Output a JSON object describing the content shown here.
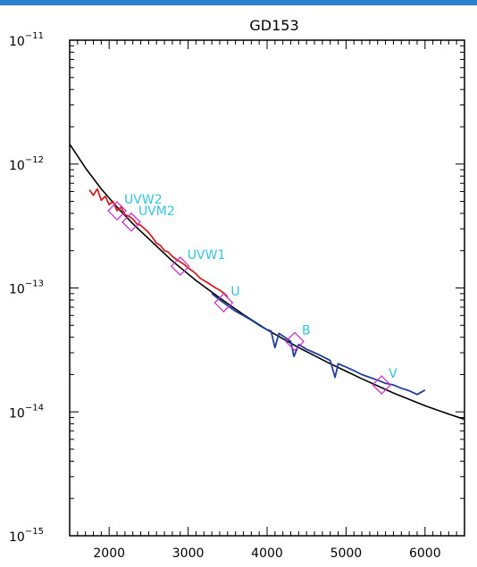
{
  "chart_data": {
    "type": "line",
    "title": "GD153",
    "xlabel": "",
    "ylabel": "",
    "xlim": [
      1500,
      6500
    ],
    "ylim": [
      1e-15,
      1e-11
    ],
    "y_scale": "log",
    "grid": false,
    "x_ticks": [
      2000,
      3000,
      4000,
      5000,
      6000
    ],
    "x_tick_labels": [
      "2000",
      "3000",
      "4000",
      "5000",
      "6000"
    ],
    "y_ticks": [
      {
        "value": 1e-11,
        "base": "10",
        "exp": "−11"
      },
      {
        "value": 1e-12,
        "base": "10",
        "exp": "−12"
      },
      {
        "value": 1e-13,
        "base": "10",
        "exp": "−13"
      },
      {
        "value": 1e-14,
        "base": "10",
        "exp": "−14"
      },
      {
        "value": 1e-15,
        "base": "10",
        "exp": "−15"
      }
    ],
    "colors": {
      "model": "#000000",
      "uv_spectrum": "#d42020",
      "optical_spectrum": "#1f3f9f",
      "photometry": "#cc33cc",
      "labels": "#33c4e0"
    },
    "series": [
      {
        "kind": "model",
        "x": [
          1500,
          1700,
          1900,
          2100,
          2300,
          2500,
          2800,
          3100,
          3400,
          3700,
          4000,
          4400,
          4800,
          5200,
          5600,
          6000,
          6300,
          6500
        ],
        "y": [
          1.45e-12,
          9.3e-13,
          6.3e-13,
          4.5e-13,
          3.3e-13,
          2.5e-13,
          1.65e-13,
          1.15e-13,
          8.3e-14,
          6.1e-14,
          4.6e-14,
          3.3e-14,
          2.45e-14,
          1.85e-14,
          1.42e-14,
          1.12e-14,
          9.6e-15,
          8.7e-15
        ]
      },
      {
        "kind": "uv_spectrum",
        "x": [
          1750,
          1800,
          1850,
          1900,
          1950,
          2000,
          2050,
          2100,
          2150,
          2200,
          2250,
          2300,
          2350,
          2400,
          2450,
          2500,
          2550,
          2600,
          2650,
          2700,
          2750,
          2800,
          2850,
          2900,
          2950,
          3000,
          3050,
          3100,
          3150,
          3200,
          3250,
          3300,
          3350,
          3400,
          3450,
          3500
        ],
        "y": [
          6.2e-13,
          5.6e-13,
          6.3e-13,
          5.1e-13,
          5.5e-13,
          4.7e-13,
          5e-13,
          4.2e-13,
          4.5e-13,
          3.9e-13,
          3.8e-13,
          3.6e-13,
          3.3e-13,
          3.2e-13,
          3e-13,
          2.8e-13,
          2.55e-13,
          2.3e-13,
          2.2e-13,
          2e-13,
          1.95e-13,
          1.8e-13,
          1.7e-13,
          1.62e-13,
          1.55e-13,
          1.45e-13,
          1.38e-13,
          1.3e-13,
          1.2e-13,
          1.15e-13,
          1.1e-13,
          1.05e-13,
          1e-13,
          9.6e-14,
          9.1e-14,
          8.5e-14
        ]
      },
      {
        "kind": "optical_spectrum",
        "x": [
          3300,
          3400,
          3500,
          3600,
          3700,
          3800,
          3900,
          4000,
          4050,
          4100,
          4150,
          4200,
          4300,
          4340,
          4400,
          4500,
          4600,
          4700,
          4800,
          4861,
          4900,
          5000,
          5100,
          5200,
          5300,
          5400,
          5500,
          5600,
          5700,
          5800,
          5900,
          6000
        ],
        "y": [
          9e-14,
          8e-14,
          7.2e-14,
          6.5e-14,
          6e-14,
          5.5e-14,
          5e-14,
          4.6e-14,
          4.5e-14,
          3.3e-14,
          4.3e-14,
          4.1e-14,
          3.7e-14,
          2.8e-14,
          3.5e-14,
          3.2e-14,
          3e-14,
          2.8e-14,
          2.6e-14,
          1.9e-14,
          2.45e-14,
          2.3e-14,
          2.15e-14,
          2e-14,
          1.9e-14,
          1.8e-14,
          1.7e-14,
          1.65e-14,
          1.55e-14,
          1.48e-14,
          1.38e-14,
          1.5e-14
        ]
      },
      {
        "kind": "photometry",
        "points": [
          {
            "filter": "UVW2",
            "x": 2100,
            "y": 4.2e-13
          },
          {
            "filter": "UVM2",
            "x": 2280,
            "y": 3.4e-13
          },
          {
            "filter": "UVW1",
            "x": 2900,
            "y": 1.5e-13
          },
          {
            "filter": "U",
            "x": 3450,
            "y": 7.6e-14
          },
          {
            "filter": "B",
            "x": 4350,
            "y": 3.7e-14
          },
          {
            "filter": "V",
            "x": 5450,
            "y": 1.65e-14
          }
        ]
      }
    ]
  }
}
